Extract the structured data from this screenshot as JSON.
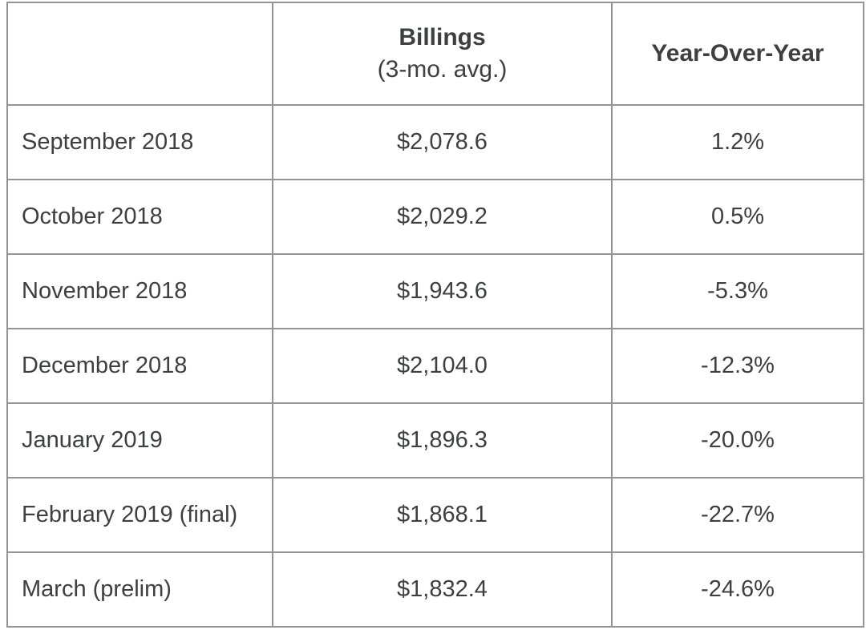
{
  "colors": {
    "text": "#3c4043",
    "grid_border": "#929598",
    "outer_border": "#7c7e81",
    "cell_background": "#ffffff",
    "page_background": "#ffffff"
  },
  "table": {
    "header": {
      "month_label": "",
      "billings_title": "Billings",
      "billings_subtitle": "(3-mo. avg.)",
      "yoy_title": "Year-Over-Year"
    },
    "rows": [
      {
        "month": "September 2018",
        "billings": "$2,078.6",
        "yoy": "1.2%"
      },
      {
        "month": "October 2018",
        "billings": "$2,029.2",
        "yoy": "0.5%"
      },
      {
        "month": "November 2018",
        "billings": "$1,943.6",
        "yoy": "-5.3%"
      },
      {
        "month": "December 2018",
        "billings": "$2,104.0",
        "yoy": "-12.3%"
      },
      {
        "month": "January 2019",
        "billings": "$1,896.3",
        "yoy": "-20.0%"
      },
      {
        "month": "February 2019 (final)",
        "billings": "$1,868.1",
        "yoy": "-22.7%"
      },
      {
        "month": "March (prelim)",
        "billings": "$1,832.4",
        "yoy": "-24.6%"
      }
    ]
  },
  "chart_data": {
    "type": "table",
    "title": "",
    "columns": [
      "",
      "Billings (3-mo. avg.)",
      "Year-Over-Year"
    ],
    "rows": [
      [
        "September 2018",
        "$2,078.6",
        "1.2%"
      ],
      [
        "October 2018",
        "$2,029.2",
        "0.5%"
      ],
      [
        "November 2018",
        "$1,943.6",
        "-5.3%"
      ],
      [
        "December 2018",
        "$2,104.0",
        "-12.3%"
      ],
      [
        "January 2019",
        "$1,896.3",
        "-20.0%"
      ],
      [
        "February 2019 (final)",
        "$1,868.1",
        "-22.7%"
      ],
      [
        "March (prelim)",
        "$1,832.4",
        "-24.6%"
      ]
    ],
    "categories": [
      "September 2018",
      "October 2018",
      "November 2018",
      "December 2018",
      "January 2019",
      "February 2019 (final)",
      "March (prelim)"
    ],
    "series": [
      {
        "name": "Billings (3-mo. avg.) USD millions",
        "values": [
          2078.6,
          2029.2,
          1943.6,
          2104.0,
          1896.3,
          1868.1,
          1832.4
        ]
      },
      {
        "name": "Year-Over-Year %",
        "values": [
          1.2,
          0.5,
          -5.3,
          -12.3,
          -20.0,
          -22.7,
          -24.6
        ]
      }
    ]
  }
}
